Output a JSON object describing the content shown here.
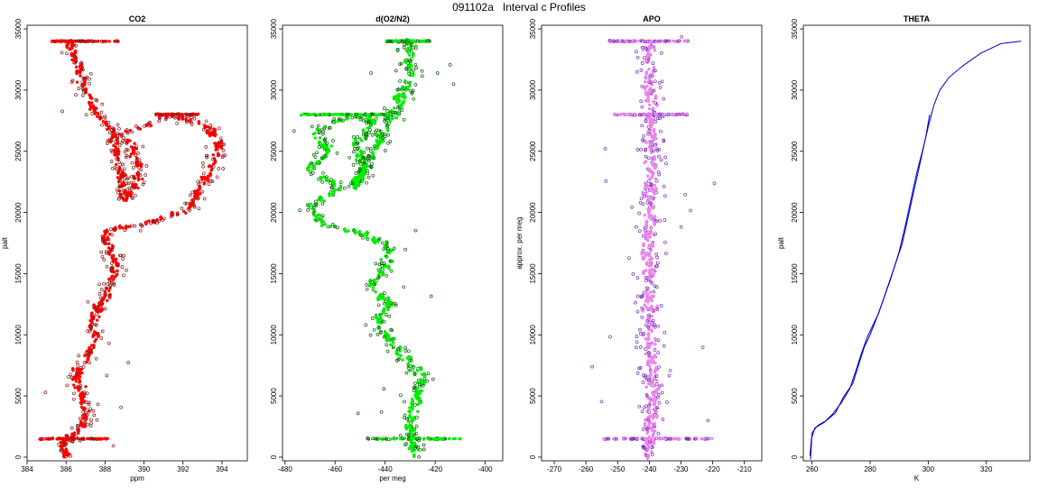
{
  "figure": {
    "title": "091102a   Interval c Profiles"
  },
  "chart_data": [
    {
      "id": "co2",
      "type": "scatter",
      "title": "CO2",
      "xlabel": "ppm",
      "ylabel": "palt",
      "xlim": [
        384.0,
        395.3
      ],
      "ylim": [
        -300,
        35300
      ],
      "xticks": [
        384,
        386,
        388,
        390,
        392,
        394
      ],
      "yticks": [
        0,
        5000,
        10000,
        15000,
        20000,
        25000,
        30000,
        35000
      ],
      "colors": {
        "fill": "#ff0000",
        "edge": "#8b1a1a"
      },
      "profile": [
        [
          0,
          386.0
        ],
        [
          1000,
          385.8
        ],
        [
          1500,
          386.2
        ],
        [
          2500,
          386.8
        ],
        [
          3500,
          387.1
        ],
        [
          5000,
          386.8
        ],
        [
          6500,
          386.5
        ],
        [
          8000,
          387.0
        ],
        [
          9500,
          387.6
        ],
        [
          11000,
          387.3
        ],
        [
          12500,
          387.8
        ],
        [
          14000,
          388.3
        ],
        [
          15500,
          388.6
        ],
        [
          17000,
          388.2
        ],
        [
          18500,
          388.0
        ],
        [
          19000,
          390.0
        ],
        [
          20000,
          392.0
        ],
        [
          21000,
          392.6
        ],
        [
          22500,
          393.0
        ],
        [
          24000,
          393.6
        ],
        [
          25500,
          393.8
        ],
        [
          27000,
          393.2
        ],
        [
          28000,
          391.5
        ],
        [
          26500,
          389.0
        ],
        [
          25000,
          389.5
        ],
        [
          23500,
          389.8
        ],
        [
          22000,
          389.5
        ],
        [
          21000,
          389.0
        ],
        [
          26500,
          388.5
        ],
        [
          28000,
          387.6
        ],
        [
          30000,
          387.0
        ],
        [
          32000,
          386.6
        ],
        [
          34000,
          386.2
        ]
      ],
      "spreadFar": 0.9,
      "spreadNear": 0.35,
      "bands": [
        {
          "y": 1500,
          "x0": 384.6,
          "x1": 388.2
        },
        {
          "y": 28000,
          "x0": 390.6,
          "x1": 392.8
        },
        {
          "y": 34000,
          "x0": 385.2,
          "x1": 388.8
        }
      ]
    },
    {
      "id": "do2n2",
      "type": "scatter",
      "title": "d(O2/N2)",
      "xlabel": "per meg",
      "ylabel": "",
      "xlim": [
        -481,
        -393
      ],
      "ylim": [
        -300,
        35300
      ],
      "xticks": [
        -480,
        -460,
        -440,
        -420,
        -400
      ],
      "yticks": [
        0,
        5000,
        10000,
        15000,
        20000,
        25000,
        30000,
        35000
      ],
      "colors": {
        "fill": "#00ee00",
        "edge": "#006400"
      },
      "profile": [
        [
          0,
          -428
        ],
        [
          1500,
          -430
        ],
        [
          3000,
          -430
        ],
        [
          4500,
          -428
        ],
        [
          6500,
          -425
        ],
        [
          8000,
          -432
        ],
        [
          9500,
          -438
        ],
        [
          11000,
          -444
        ],
        [
          12500,
          -438
        ],
        [
          14000,
          -446
        ],
        [
          15500,
          -440
        ],
        [
          17000,
          -438
        ],
        [
          18000,
          -446
        ],
        [
          19000,
          -465
        ],
        [
          20500,
          -470
        ],
        [
          22000,
          -458
        ],
        [
          23500,
          -470
        ],
        [
          25000,
          -462
        ],
        [
          26500,
          -468
        ],
        [
          27500,
          -460
        ],
        [
          28000,
          -448
        ],
        [
          27000,
          -444
        ],
        [
          25500,
          -452
        ],
        [
          24000,
          -448
        ],
        [
          22000,
          -452
        ],
        [
          28500,
          -436
        ],
        [
          30000,
          -432
        ],
        [
          32000,
          -430
        ],
        [
          34000,
          -430
        ]
      ],
      "spreadFar": 7,
      "spreadNear": 3,
      "bands": [
        {
          "y": 1500,
          "x0": -447,
          "x1": -409
        },
        {
          "y": 28000,
          "x0": -474,
          "x1": -437
        },
        {
          "y": 34000,
          "x0": -440,
          "x1": -422
        }
      ]
    },
    {
      "id": "apo",
      "type": "scatter",
      "title": "APO",
      "xlabel": "",
      "ylabel": "approx. per meg",
      "xlim": [
        -274,
        -204.5
      ],
      "ylim": [
        -300,
        35300
      ],
      "xticks": [
        -270,
        -260,
        -250,
        -240,
        -230,
        -220,
        -210
      ],
      "yticks": [
        0,
        5000,
        10000,
        15000,
        20000,
        25000,
        30000,
        35000
      ],
      "colors": {
        "fill": "#ee82ee",
        "edge": "#7b2fbf"
      },
      "profile": [
        [
          0,
          -240
        ],
        [
          5000,
          -239
        ],
        [
          10000,
          -240
        ],
        [
          15000,
          -240
        ],
        [
          20000,
          -240
        ],
        [
          25000,
          -239
        ],
        [
          30000,
          -240
        ],
        [
          34000,
          -240
        ]
      ],
      "spreadFar": 7,
      "spreadNear": 3,
      "bands": [
        {
          "y": 1500,
          "x0": -256,
          "x1": -220
        },
        {
          "y": 28000,
          "x0": -251,
          "x1": -228
        },
        {
          "y": 34000,
          "x0": -253,
          "x1": -226
        }
      ]
    },
    {
      "id": "theta",
      "type": "line",
      "title": "THETA",
      "xlabel": "K",
      "ylabel": "palt",
      "xlim": [
        257,
        335
      ],
      "ylim": [
        -300,
        35300
      ],
      "xticks": [
        260,
        280,
        300,
        320
      ],
      "yticks": [
        0,
        5000,
        10000,
        15000,
        20000,
        25000,
        30000,
        35000
      ],
      "colors": {
        "line": "#0000cd"
      },
      "series": [
        {
          "points": [
            [
              259.5,
              -200
            ],
            [
              260.0,
              2000
            ],
            [
              262,
              2600
            ],
            [
              265,
              3000
            ],
            [
              268,
              3600
            ],
            [
              271,
              5000
            ],
            [
              274,
              6000
            ],
            [
              276,
              7500
            ],
            [
              278,
              9000
            ],
            [
              280,
              10000
            ],
            [
              282,
              11200
            ],
            [
              284,
              12500
            ],
            [
              287,
              14500
            ],
            [
              290,
              16800
            ],
            [
              292,
              18800
            ],
            [
              294,
              21000
            ],
            [
              296,
              23200
            ],
            [
              298,
              25000
            ],
            [
              300,
              27000
            ],
            [
              302,
              28800
            ],
            [
              304,
              30000
            ],
            [
              307,
              31000
            ],
            [
              312,
              32000
            ],
            [
              318,
              33000
            ],
            [
              325,
              33800
            ],
            [
              332,
              34000
            ]
          ]
        },
        {
          "points": [
            [
              259.3,
              100
            ],
            [
              259.8,
              1500
            ],
            [
              261,
              2400
            ],
            [
              264,
              2800
            ],
            [
              267,
              3500
            ],
            [
              270,
              4400
            ],
            [
              273,
              5600
            ],
            [
              275,
              7000
            ],
            [
              277,
              8500
            ],
            [
              279,
              9800
            ],
            [
              281,
              10800
            ],
            [
              283,
              11800
            ],
            [
              285,
              13200
            ],
            [
              288,
              15300
            ],
            [
              291,
              17400
            ],
            [
              293,
              19500
            ],
            [
              295,
              21700
            ],
            [
              297,
              23800
            ],
            [
              299,
              26000
            ],
            [
              300.5,
              28000
            ]
          ]
        }
      ]
    }
  ]
}
